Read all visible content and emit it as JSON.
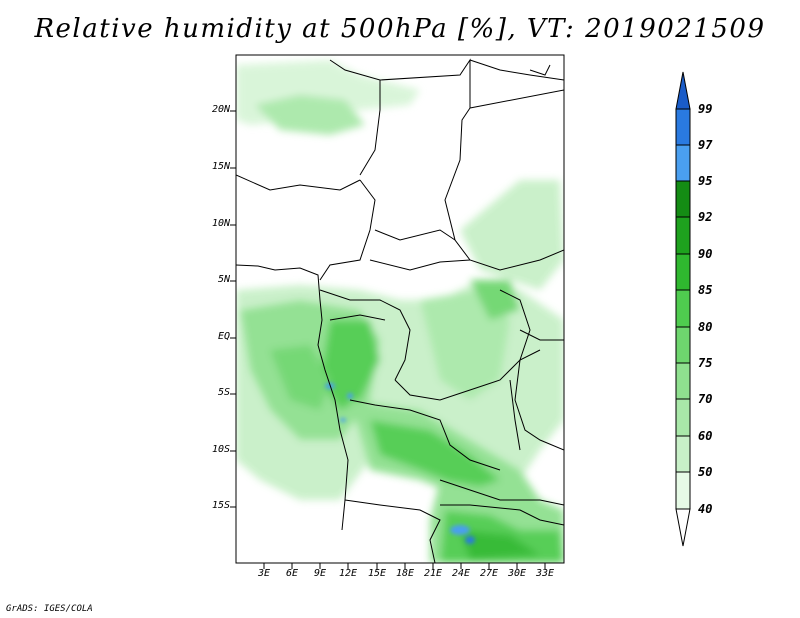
{
  "title": "Relative humidity at 500hPa [%], VT: 2019021509",
  "credit": "GrADS: IGES/COLA",
  "lat_labels": [
    "20N",
    "15N",
    "10N",
    "5N",
    "EQ",
    "5S",
    "10S",
    "15S"
  ],
  "lon_labels": [
    "3E",
    "6E",
    "9E",
    "12E",
    "15E",
    "18E",
    "21E",
    "24E",
    "27E",
    "30E",
    "33E"
  ],
  "colorbar": {
    "labels": [
      "40",
      "50",
      "60",
      "70",
      "75",
      "80",
      "85",
      "90",
      "92",
      "95",
      "97",
      "99"
    ],
    "colors": [
      "#ffffff",
      "#e6fae6",
      "#c8f0c8",
      "#a9e8a9",
      "#8fe08f",
      "#6ed66e",
      "#4fcc4f",
      "#2fb82f",
      "#1ea21e",
      "#148c14",
      "#4a9ff0",
      "#2a7ae0",
      "#1a5cc8"
    ]
  }
}
